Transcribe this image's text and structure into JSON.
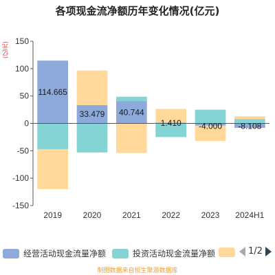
{
  "title": "各项现金流净额历年变化情况(亿元)",
  "unit_label": "(亿元)",
  "source": "制图数据来自恒生聚源数据库",
  "colors": {
    "operating": "#8eaadb",
    "investing": "#85d4d4",
    "financing": "#ffd89a",
    "axis": "#555555",
    "grid": "#e6e6e6"
  },
  "legend": {
    "items": [
      "经营活动现金流量净额",
      "投资活动现金流量净额",
      ""
    ],
    "pager": "1/2"
  },
  "chart_data": {
    "type": "bar",
    "stacked": true,
    "title": "各项现金流净额历年变化情况(亿元)",
    "categories": [
      "2019",
      "2020",
      "2021",
      "2022",
      "2023",
      "2024H1"
    ],
    "ylim": [
      -150,
      150
    ],
    "yticks": [
      -150,
      -100,
      -50,
      0,
      50,
      100,
      150
    ],
    "series": [
      {
        "name": "经营活动现金流量净额",
        "color": "#8eaadb",
        "values": [
          114.665,
          33.479,
          40.744,
          1.41,
          -4.0,
          -8.108
        ]
      },
      {
        "name": "投资活动现金流量净额",
        "color": "#85d4d4",
        "values": [
          -47,
          -53,
          8,
          -25,
          25,
          8
        ]
      },
      {
        "name": "",
        "color": "#ffd89a",
        "values": [
          -73,
          63,
          -54,
          25,
          -28,
          5
        ]
      }
    ],
    "data_labels": [
      "114.665",
      "33.479",
      "40.744",
      "1.410",
      "-4.000",
      "-8.108"
    ],
    "legend": "bottom",
    "grid": false
  }
}
